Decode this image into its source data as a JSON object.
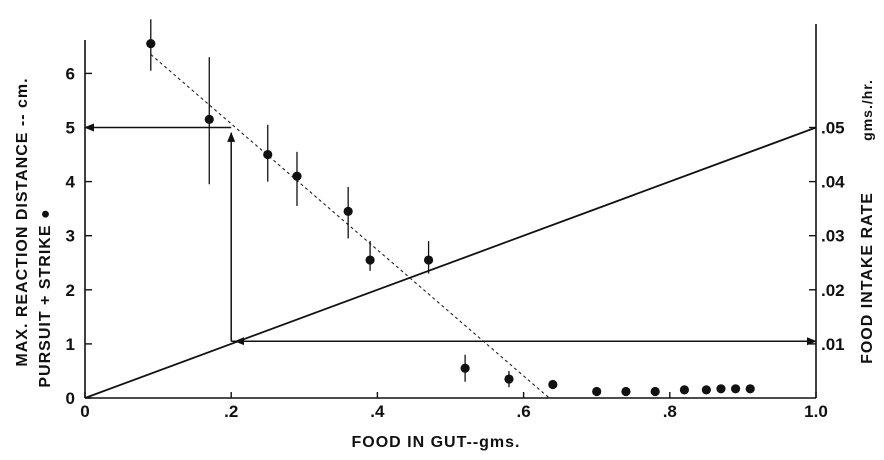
{
  "chart_data": {
    "type": "scatter",
    "xlabel": "FOOD IN GUT--gms.",
    "ylabel_line1": "MAX. REACTION  DISTANCE -- cm.",
    "ylabel_line2": "PURSUIT + STRIKE ●",
    "y2label": "FOOD  INTAKE  RATE",
    "y2unit": "gms./hr.",
    "xlim": [
      0,
      1.0
    ],
    "ylim": [
      0,
      6.5
    ],
    "y2lim": [
      0,
      0.065
    ],
    "x_ticks": [
      0,
      0.2,
      0.4,
      0.6,
      0.8,
      1.0
    ],
    "x_tick_labels": [
      "0",
      ".2",
      ".4",
      ".6",
      ".8",
      "1.0"
    ],
    "y_ticks": [
      0,
      1,
      2,
      3,
      4,
      5,
      6
    ],
    "y_tick_labels": [
      "0",
      "1",
      "2",
      "3",
      "4",
      "5",
      "6"
    ],
    "y2_ticks": [
      0.01,
      0.02,
      0.03,
      0.04,
      0.05
    ],
    "y2_tick_labels": [
      ".01",
      ".02",
      ".03",
      ".04",
      ".05"
    ],
    "series": [
      {
        "name": "PURSUIT + STRIKE",
        "x": [
          0.09,
          0.17,
          0.25,
          0.29,
          0.36,
          0.39,
          0.47,
          0.52,
          0.58,
          0.64,
          0.7,
          0.74,
          0.78,
          0.82,
          0.85,
          0.87,
          0.89,
          0.91
        ],
        "y": [
          6.55,
          5.15,
          4.5,
          4.1,
          3.45,
          2.55,
          2.55,
          0.55,
          0.35,
          0.25,
          0.12,
          0.12,
          0.12,
          0.15,
          0.15,
          0.17,
          0.17,
          0.17
        ],
        "err_low": [
          6.05,
          3.95,
          4.0,
          3.55,
          2.95,
          2.35,
          2.3,
          0.3,
          0.2,
          0.2,
          0.12,
          0.12,
          0.12,
          0.15,
          0.15,
          0.17,
          0.17,
          0.17
        ],
        "err_high": [
          7.0,
          6.3,
          5.05,
          4.55,
          3.9,
          2.9,
          2.9,
          0.8,
          0.5,
          0.3,
          0.12,
          0.12,
          0.12,
          0.15,
          0.15,
          0.17,
          0.17,
          0.17
        ]
      }
    ],
    "dashed_fit": {
      "x": [
        0.09,
        0.635
      ],
      "y": [
        6.35,
        0.0
      ]
    },
    "intake_line": {
      "x": [
        0,
        1.0
      ],
      "y2": [
        0,
        0.05
      ]
    },
    "annotation_arrows": [
      {
        "from_x": 0.2,
        "from_y": 1.05,
        "to_x": 0.2,
        "to_y": 4.9
      },
      {
        "from_x": 0.2,
        "from_y": 5.0,
        "to_x": 0.0,
        "to_y": 5.0
      },
      {
        "from_x": 0.2,
        "from_y": 1.05,
        "to_x": 1.0,
        "to_y": 1.05
      }
    ],
    "grid": false
  }
}
